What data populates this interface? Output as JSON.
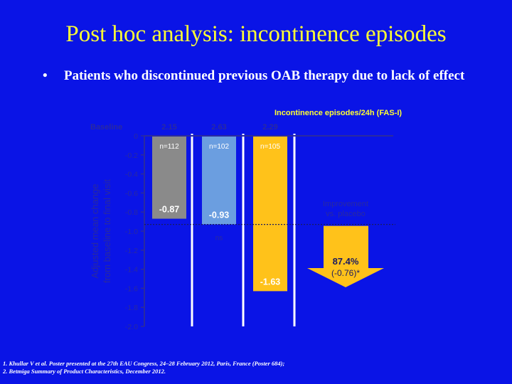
{
  "slide": {
    "title": "Post hoc analysis: incontinence episodes",
    "bullet": "Patients who discontinued previous OAB therapy due to lack of effect"
  },
  "chart_data": {
    "type": "bar",
    "title": "Incontinence episodes/24h (FAS-I)",
    "ylabel": [
      "Adjusted mean change",
      "from baseline to final visit"
    ],
    "ylim": [
      -2.0,
      0
    ],
    "yticks": [
      0,
      -0.2,
      -0.4,
      -0.6,
      -0.8,
      -1.0,
      -1.2,
      -1.4,
      -1.6,
      -1.8,
      -2.0
    ],
    "ytick_labels": [
      "0",
      "-0.2",
      "-0.4",
      "-0.6",
      "-0.8",
      "-1.0",
      "-1.2",
      "-1.4",
      "-1.6",
      "-1.8",
      "-2.0"
    ],
    "baseline_label": "Baseline",
    "bars": [
      {
        "n_label": "n=112",
        "baseline": "2.15",
        "value": -0.87,
        "value_label": "-0.87",
        "color": "#8a8a8a"
      },
      {
        "n_label": "n=102",
        "baseline": "2.63",
        "value": -0.93,
        "value_label": "-0.93",
        "color": "#6b9ee0",
        "note": "ns"
      },
      {
        "n_label": "n=105",
        "baseline": "2.29",
        "value": -1.63,
        "value_label": "-1.63",
        "color": "#ffc21a"
      }
    ],
    "reference_value": -0.93,
    "arrow": {
      "label": [
        "Improvement",
        "vs. placebo"
      ],
      "pct": "87.4%",
      "diff": "(-0.76)*",
      "color": "#ffc21a"
    },
    "grid": false
  },
  "footnotes": [
    "1. Khullar V et al. Poster presented at the 27th EAU Congress, 24–28 February 2012, Paris, France (Poster 684);",
    "2. Betmiga Summary of Product Characteristics, December 2012."
  ]
}
